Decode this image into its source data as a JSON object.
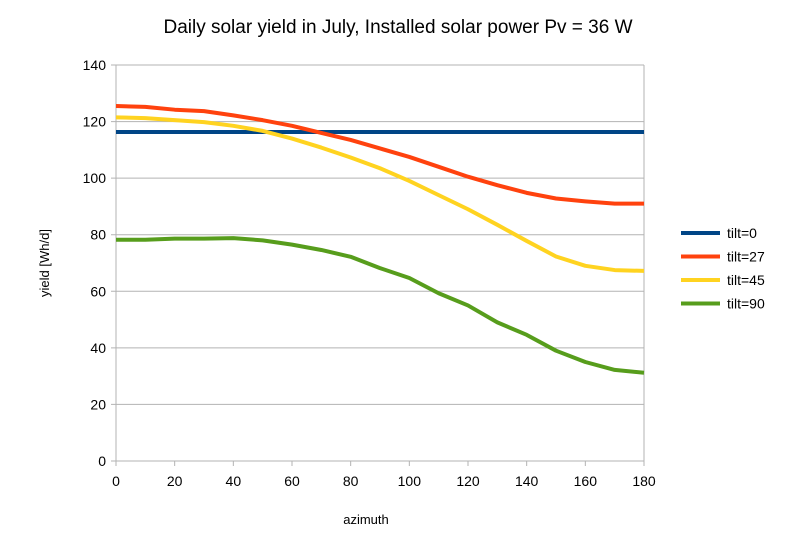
{
  "chart_data": {
    "type": "line",
    "title": "Daily solar yield in July, Installed solar power Pv = 36 W",
    "xlabel": "azimuth",
    "ylabel": "yield [Wh/d]",
    "xlim": [
      0,
      180
    ],
    "ylim": [
      0,
      140
    ],
    "xticks": [
      0,
      20,
      40,
      60,
      80,
      100,
      120,
      140,
      160,
      180
    ],
    "yticks": [
      0,
      20,
      40,
      60,
      80,
      100,
      120,
      140
    ],
    "grid": "horizontal",
    "legend_position": "right",
    "x": [
      0,
      10,
      20,
      30,
      40,
      50,
      60,
      70,
      80,
      90,
      100,
      110,
      120,
      130,
      140,
      150,
      160,
      170,
      180
    ],
    "series": [
      {
        "name": "tilt=0",
        "color": "#004586",
        "values": [
          116.3,
          116.3,
          116.3,
          116.3,
          116.3,
          116.3,
          116.3,
          116.3,
          116.3,
          116.3,
          116.3,
          116.3,
          116.3,
          116.3,
          116.3,
          116.3,
          116.3,
          116.3,
          116.3
        ]
      },
      {
        "name": "tilt=27",
        "color": "#ff420e",
        "values": [
          125.5,
          125.2,
          124.2,
          123.7,
          122.2,
          120.5,
          118.5,
          116,
          113.5,
          110.5,
          107.5,
          104,
          100.5,
          97.5,
          94.8,
          92.8,
          91.8,
          91,
          91
        ]
      },
      {
        "name": "tilt=45",
        "color": "#ffd320",
        "values": [
          121.5,
          121.2,
          120.5,
          119.8,
          118.5,
          116.7,
          114,
          110.8,
          107.3,
          103.5,
          99,
          94,
          89,
          83.5,
          77.8,
          72.3,
          69,
          67.5,
          67.2
        ]
      },
      {
        "name": "tilt=90",
        "color": "#579d1c",
        "values": [
          78.2,
          78.2,
          78.6,
          78.6,
          78.8,
          78,
          76.5,
          74.6,
          72.2,
          68.2,
          64.7,
          59.3,
          55,
          49,
          44.6,
          39,
          35,
          32.2,
          31.2
        ]
      }
    ]
  }
}
